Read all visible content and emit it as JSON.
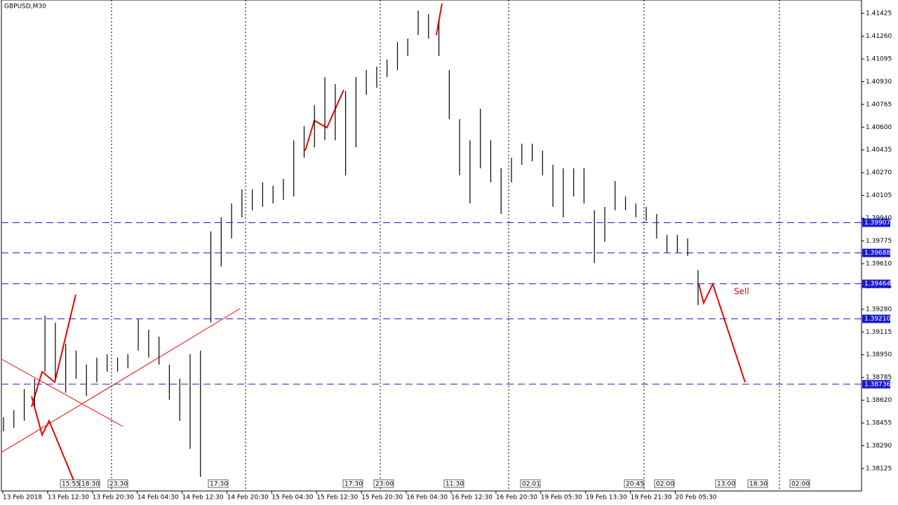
{
  "chart_data": {
    "type": "ohlc",
    "title": "GBPUSD,M30",
    "ylim": [
      1.37962,
      1.41522
    ],
    "yticks": [
      {
        "value": 1.41425,
        "label": "1.41425"
      },
      {
        "value": 1.4126,
        "label": "1.41260"
      },
      {
        "value": 1.41095,
        "label": "1.41095"
      },
      {
        "value": 1.4093,
        "label": "1.40930"
      },
      {
        "value": 1.40765,
        "label": "1.40765"
      },
      {
        "value": 1.406,
        "label": "1.40600"
      },
      {
        "value": 1.40435,
        "label": "1.40435"
      },
      {
        "value": 1.4027,
        "label": "1.40270"
      },
      {
        "value": 1.40105,
        "label": "1.40105"
      },
      {
        "value": 1.3994,
        "label": "1.39940"
      },
      {
        "value": 1.39775,
        "label": "1.39775"
      },
      {
        "value": 1.3961,
        "label": "1.39610"
      },
      {
        "value": 1.39445,
        "label": "1.39445"
      },
      {
        "value": 1.3928,
        "label": "1.39280"
      },
      {
        "value": 1.39115,
        "label": "1.39115"
      },
      {
        "value": 1.3895,
        "label": "1.38950"
      },
      {
        "value": 1.38785,
        "label": "1.38785"
      },
      {
        "value": 1.3862,
        "label": "1.38620"
      },
      {
        "value": 1.38455,
        "label": "1.38455"
      },
      {
        "value": 1.3829,
        "label": "1.38290"
      },
      {
        "value": 1.38125,
        "label": "1.38125"
      }
    ],
    "x_labels": [
      "13 Feb 2018",
      "13 Feb 12:30",
      "13 Feb 20:30",
      "14 Feb 04:30",
      "14 Feb 12:30",
      "14 Feb 20:30",
      "15 Feb 04:30",
      "15 Feb 12:30",
      "15 Feb 20:30",
      "16 Feb 04:30",
      "16 Feb 12:30",
      "16 Feb 20:30",
      "19 Feb 05:30",
      "19 Feb 13:30",
      "19 Feb 21:30",
      "20 Feb 05:30"
    ],
    "high": [
      1.38496,
      1.38547,
      1.387,
      1.38776,
      1.39234,
      1.39183,
      1.3903,
      1.3898,
      1.38878,
      1.38929,
      1.38954,
      1.38929,
      1.38954,
      1.39208,
      1.39132,
      1.39081,
      1.38878,
      1.38776,
      1.38954,
      1.3898,
      1.39844,
      1.39946,
      1.40047,
      1.40149,
      1.40149,
      1.402,
      1.40175,
      1.40225,
      1.40505,
      1.40607,
      1.40759,
      1.40963,
      1.40912,
      1.40861,
      1.40963,
      1.41014,
      1.41039,
      1.4109,
      1.41217,
      1.41242,
      1.41446,
      1.4142,
      1.41369,
      1.41014,
      1.40658,
      1.40505,
      1.40734,
      1.40505,
      1.40302,
      1.40378,
      1.4048,
      1.4048,
      1.40429,
      1.40327,
      1.40302,
      1.40302,
      1.40302,
      1.39997,
      1.40022,
      1.4021,
      1.40098,
      1.40047,
      1.40022,
      1.39971,
      1.39819,
      1.39819,
      1.39793,
      1.39564
    ],
    "low": [
      1.38395,
      1.3842,
      1.38471,
      1.38573,
      1.38827,
      1.38776,
      1.38674,
      1.38776,
      1.38649,
      1.38751,
      1.38827,
      1.38827,
      1.38852,
      1.3898,
      1.38929,
      1.38878,
      1.38624,
      1.38471,
      1.38268,
      1.38064,
      1.39183,
      1.3959,
      1.39793,
      1.39946,
      1.39997,
      1.40022,
      1.40047,
      1.40073,
      1.40098,
      1.40378,
      1.40454,
      1.40505,
      1.40505,
      1.40251,
      1.40454,
      1.40836,
      1.40886,
      1.40963,
      1.41014,
      1.41115,
      1.41268,
      1.41242,
      1.41115,
      1.40658,
      1.40251,
      1.40047,
      1.40302,
      1.402,
      1.39971,
      1.402,
      1.40327,
      1.40352,
      1.40251,
      1.40022,
      1.39946,
      1.40098,
      1.40047,
      1.39615,
      1.39768,
      1.39997,
      1.39997,
      1.39946,
      1.3992,
      1.39793,
      1.39691,
      1.39691,
      1.39666,
      1.3931
    ],
    "levels": [
      {
        "value": 1.39907,
        "label": "1.39907"
      },
      {
        "value": 1.39688,
        "label": "1.39688"
      },
      {
        "value": 1.39464,
        "label": "1.39464"
      },
      {
        "value": 1.3921,
        "label": "1.39210"
      },
      {
        "value": 1.38736,
        "label": "1.38736"
      }
    ],
    "annotation": "Sell",
    "tags": [
      "15:55",
      "18:30",
      "23:30",
      "17:30",
      "17:30",
      "23:00",
      "11:30",
      "02:01",
      "20:45",
      "02:00",
      "13:00",
      "18:30",
      "02:00"
    ]
  }
}
